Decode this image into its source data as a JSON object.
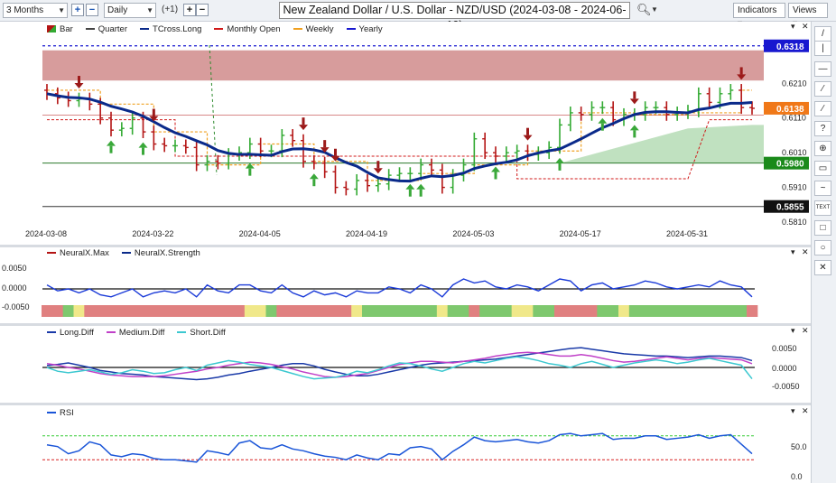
{
  "toolbar": {
    "period": "3 Months",
    "interval": "Daily",
    "offset": "(+1)",
    "title": "New Zealand Dollar / U.S. Dollar - NZD/USD (2024-03-08 - 2024-06-10)",
    "indicators_label": "Indicators",
    "views_label": "Views"
  },
  "price_legend": [
    {
      "label": "Bar"
    },
    {
      "label": "Quarter"
    },
    {
      "label": "TCross.Long"
    },
    {
      "label": "Monthly Open"
    },
    {
      "label": "Weekly"
    },
    {
      "label": "Yearly"
    }
  ],
  "price_axis": {
    "ticks": [
      "0.6210",
      "0.6110",
      "0.6010",
      "0.5910",
      "0.5810"
    ],
    "tags": {
      "yearly": "0.6318",
      "last": "0.6138",
      "quarter": "0.5980",
      "low": "0.5855"
    }
  },
  "dates": [
    "2024-03-08",
    "2024-03-22",
    "2024-04-05",
    "2024-04-19",
    "2024-05-03",
    "2024-05-17",
    "2024-05-31"
  ],
  "neural_legend": [
    {
      "label": "NeuralX.Max"
    },
    {
      "label": "NeuralX.Strength"
    }
  ],
  "neural_axis": [
    "0.0050",
    "0.0000",
    "-0.0050"
  ],
  "diff_legend": [
    {
      "label": "Long.Diff"
    },
    {
      "label": "Medium.Diff"
    },
    {
      "label": "Short.Diff"
    }
  ],
  "diff_axis": [
    "0.0050",
    "0.0000",
    "-0.0050"
  ],
  "rsi_legend": [
    {
      "label": "RSI"
    }
  ],
  "rsi_axis": [
    "50.0",
    "0.0"
  ],
  "sidebar_icons": [
    "pencil-icon",
    "vertical-line-icon",
    "horizontal-line-icon",
    "trend-line-icon",
    "channel-icon",
    "fibonacci-icon",
    "crosshair-icon",
    "callout-icon",
    "wave-icon",
    "text-icon",
    "rectangle-icon",
    "circle-icon",
    "delete-icon"
  ],
  "sidebar_labels": [
    "/",
    "|",
    "—",
    "⁄",
    "∕",
    "?",
    "⊕",
    "▭",
    "~",
    "TEXT",
    "□",
    "○",
    "✕"
  ],
  "colors": {
    "up": "#33aa33",
    "down": "#b41414",
    "tcross": "#0a2a8a",
    "weekly": "#f0a020",
    "monthly": "#d01818",
    "yearly": "#1818d0",
    "quarter": "#444444"
  },
  "chart_data": {
    "type": "ohlc",
    "x": [
      "03-08",
      "03-11",
      "03-12",
      "03-13",
      "03-14",
      "03-15",
      "03-18",
      "03-19",
      "03-20",
      "03-21",
      "03-22",
      "03-25",
      "03-26",
      "03-27",
      "03-28",
      "03-29",
      "04-01",
      "04-02",
      "04-03",
      "04-04",
      "04-05",
      "04-08",
      "04-09",
      "04-10",
      "04-11",
      "04-12",
      "04-15",
      "04-16",
      "04-17",
      "04-18",
      "04-19",
      "04-22",
      "04-23",
      "04-24",
      "04-25",
      "04-26",
      "04-29",
      "04-30",
      "05-01",
      "05-02",
      "05-03",
      "05-06",
      "05-07",
      "05-08",
      "05-09",
      "05-10",
      "05-13",
      "05-14",
      "05-15",
      "05-16",
      "05-17",
      "05-20",
      "05-21",
      "05-22",
      "05-23",
      "05-24",
      "05-27",
      "05-28",
      "05-29",
      "05-30",
      "05-31",
      "06-03",
      "06-04",
      "06-05",
      "06-06",
      "06-07",
      "06-10"
    ],
    "close": [
      0.618,
      0.6168,
      0.616,
      0.6165,
      0.615,
      0.611,
      0.6075,
      0.608,
      0.611,
      0.607,
      0.6035,
      0.603,
      0.603,
      0.6025,
      0.5975,
      0.5985,
      0.598,
      0.6005,
      0.601,
      0.6035,
      0.6015,
      0.6015,
      0.606,
      0.6045,
      0.5985,
      0.598,
      0.5955,
      0.591,
      0.5905,
      0.593,
      0.5915,
      0.592,
      0.5945,
      0.595,
      0.595,
      0.5975,
      0.596,
      0.591,
      0.5945,
      0.5975,
      0.605,
      0.601,
      0.6,
      0.601,
      0.6015,
      0.6005,
      0.601,
      0.6025,
      0.609,
      0.6125,
      0.612,
      0.614,
      0.614,
      0.6105,
      0.612,
      0.612,
      0.614,
      0.614,
      0.612,
      0.6125,
      0.613,
      0.618,
      0.6155,
      0.618,
      0.619,
      0.614,
      0.6138
    ],
    "open": [
      0.619,
      0.618,
      0.6168,
      0.616,
      0.6165,
      0.615,
      0.611,
      0.6075,
      0.608,
      0.611,
      0.607,
      0.6035,
      0.603,
      0.603,
      0.6025,
      0.5975,
      0.5985,
      0.598,
      0.6005,
      0.601,
      0.6035,
      0.6015,
      0.6015,
      0.606,
      0.6045,
      0.5985,
      0.598,
      0.5955,
      0.591,
      0.5905,
      0.593,
      0.5915,
      0.592,
      0.5945,
      0.595,
      0.595,
      0.5975,
      0.596,
      0.591,
      0.5945,
      0.5975,
      0.605,
      0.601,
      0.6,
      0.601,
      0.6015,
      0.6005,
      0.601,
      0.6025,
      0.609,
      0.6125,
      0.612,
      0.614,
      0.614,
      0.6105,
      0.612,
      0.612,
      0.614,
      0.614,
      0.612,
      0.6125,
      0.613,
      0.618,
      0.6155,
      0.618,
      0.619,
      0.614
    ],
    "signals_down": [
      3,
      10,
      24,
      26,
      27,
      31,
      45,
      55,
      65
    ],
    "signals_up": [
      6,
      9,
      19,
      25,
      34,
      35,
      42,
      48,
      52,
      55
    ],
    "levels": {
      "yearly": 0.6318,
      "quarter": 0.598,
      "low": 0.5855
    },
    "ylim": [
      0.581,
      0.632
    ],
    "rsi": [
      55,
      52,
      40,
      45,
      60,
      55,
      38,
      35,
      40,
      38,
      32,
      30,
      30,
      28,
      26,
      45,
      42,
      38,
      58,
      62,
      50,
      48,
      55,
      48,
      45,
      40,
      36,
      34,
      30,
      38,
      33,
      30,
      40,
      38,
      50,
      52,
      48,
      30,
      44,
      55,
      68,
      62,
      60,
      62,
      64,
      60,
      58,
      62,
      72,
      74,
      70,
      72,
      74,
      64,
      66,
      66,
      70,
      70,
      64,
      66,
      68,
      72,
      66,
      70,
      72,
      56,
      40
    ],
    "neural_strength": [
      0.001,
      -0.0005,
      0.0,
      -0.001,
      0.0,
      -0.0015,
      -0.002,
      -0.001,
      0.0,
      -0.002,
      -0.001,
      -0.0005,
      -0.001,
      0.0,
      -0.002,
      0.001,
      -0.0005,
      -0.001,
      0.001,
      0.001,
      -0.0005,
      -0.001,
      0.001,
      -0.001,
      -0.002,
      -0.0005,
      -0.0015,
      -0.001,
      -0.002,
      -0.0005,
      -0.001,
      -0.001,
      0.0005,
      0.0,
      -0.001,
      0.001,
      0.0,
      -0.002,
      0.001,
      0.0025,
      0.0015,
      0.002,
      0.0005,
      0.0,
      0.001,
      0.0005,
      -0.0005,
      0.001,
      0.0025,
      0.002,
      -0.0005,
      0.001,
      0.0015,
      0.0,
      0.0005,
      0.001,
      0.002,
      0.0015,
      0.0005,
      0.0,
      0.0005,
      0.001,
      0.0005,
      0.002,
      0.001,
      0.0005,
      -0.002
    ],
    "long_diff": [
      0.0005,
      0.0008,
      0.0012,
      0.0006,
      0.0,
      -0.0008,
      -0.0012,
      -0.0016,
      -0.0018,
      -0.002,
      -0.0024,
      -0.0026,
      -0.0028,
      -0.003,
      -0.0032,
      -0.003,
      -0.0026,
      -0.002,
      -0.0016,
      -0.001,
      -0.0005,
      0.0,
      0.0006,
      0.001,
      0.001,
      0.0004,
      -0.0005,
      -0.0012,
      -0.0018,
      -0.0022,
      -0.0022,
      -0.0018,
      -0.0012,
      -0.0006,
      0.0,
      0.0006,
      0.001,
      0.0012,
      0.0014,
      0.0016,
      0.0018,
      0.002,
      0.0022,
      0.0026,
      0.003,
      0.0034,
      0.0038,
      0.0042,
      0.0046,
      0.005,
      0.0052,
      0.0048,
      0.0044,
      0.004,
      0.0036,
      0.0034,
      0.0032,
      0.003,
      0.003,
      0.0028,
      0.0026,
      0.0028,
      0.003,
      0.003,
      0.0028,
      0.0026,
      0.0018
    ],
    "medium_diff": [
      0.001,
      0.0006,
      0.0,
      -0.0004,
      -0.001,
      -0.0016,
      -0.002,
      -0.0022,
      -0.0024,
      -0.0024,
      -0.0024,
      -0.0022,
      -0.0018,
      -0.0014,
      -0.001,
      -0.0004,
      0.0,
      0.0006,
      0.001,
      0.0014,
      0.0012,
      0.0008,
      0.0002,
      -0.0004,
      -0.0012,
      -0.0018,
      -0.0024,
      -0.0026,
      -0.0024,
      -0.002,
      -0.0016,
      -0.0008,
      0.0,
      0.0008,
      0.0012,
      0.0016,
      0.0016,
      0.0014,
      0.0012,
      0.0016,
      0.002,
      0.0024,
      0.003,
      0.0034,
      0.0038,
      0.004,
      0.0038,
      0.0034,
      0.003,
      0.003,
      0.0034,
      0.003,
      0.0024,
      0.0018,
      0.0014,
      0.0016,
      0.002,
      0.0024,
      0.0028,
      0.0024,
      0.002,
      0.0024,
      0.0026,
      0.0024,
      0.0022,
      0.002,
      0.001
    ],
    "short_diff": [
      0.0,
      -0.001,
      -0.0014,
      -0.001,
      -0.0006,
      -0.0012,
      -0.0018,
      -0.0014,
      -0.0006,
      -0.001,
      -0.0016,
      -0.0014,
      -0.0006,
      0.0,
      -0.0008,
      0.0006,
      0.0012,
      0.0018,
      0.0014,
      0.0008,
      0.0004,
      0.0,
      -0.0008,
      -0.0016,
      -0.0024,
      -0.003,
      -0.0028,
      -0.0026,
      -0.002,
      -0.001,
      -0.0014,
      -0.0006,
      0.0004,
      0.0012,
      0.001,
      0.0004,
      -0.0004,
      -0.001,
      0.0,
      0.001,
      0.0016,
      0.0012,
      0.0018,
      0.0024,
      0.0028,
      0.0024,
      0.0018,
      0.001,
      0.0006,
      0.0,
      0.001,
      0.0016,
      0.0008,
      0.0,
      0.0006,
      0.0012,
      0.0016,
      0.002,
      0.0016,
      0.001,
      0.0014,
      0.002,
      0.0024,
      0.0018,
      0.0012,
      0.0006,
      -0.003
    ],
    "neural_colors": [
      "r",
      "r",
      "g",
      "y",
      "r",
      "r",
      "r",
      "r",
      "r",
      "r",
      "r",
      "r",
      "r",
      "r",
      "r",
      "r",
      "r",
      "r",
      "r",
      "y",
      "y",
      "g",
      "r",
      "r",
      "r",
      "r",
      "r",
      "r",
      "r",
      "y",
      "g",
      "g",
      "g",
      "g",
      "g",
      "g",
      "g",
      "y",
      "g",
      "g",
      "r",
      "g",
      "g",
      "g",
      "y",
      "y",
      "g",
      "g",
      "r",
      "r",
      "r",
      "r",
      "g",
      "g",
      "y",
      "g",
      "g",
      "g",
      "g",
      "g",
      "g",
      "g",
      "g",
      "g",
      "g",
      "g",
      "r"
    ]
  }
}
